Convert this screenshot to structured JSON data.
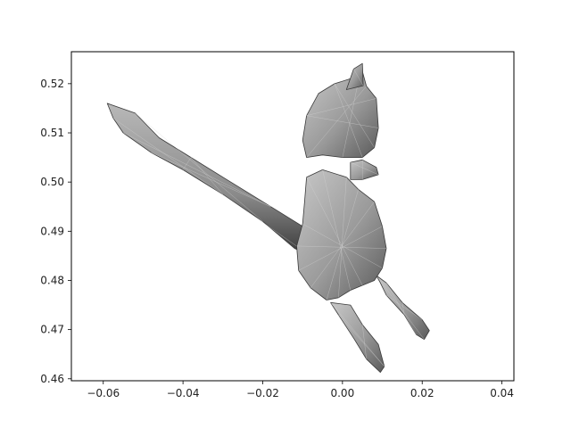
{
  "chart_data": {
    "type": "scatter",
    "title": "",
    "xlabel": "",
    "ylabel": "",
    "xlim": [
      -0.068,
      0.043
    ],
    "ylim": [
      0.4596,
      0.5265
    ],
    "x_ticks": [
      -0.06,
      -0.04,
      -0.02,
      0.0,
      0.02,
      0.04
    ],
    "x_tick_labels": [
      "−0.06",
      "−0.04",
      "−0.02",
      "0.00",
      "0.02",
      "0.04"
    ],
    "y_ticks": [
      0.46,
      0.47,
      0.48,
      0.49,
      0.5,
      0.51,
      0.52
    ],
    "y_tick_labels": [
      "0.46",
      "0.47",
      "0.48",
      "0.49",
      "0.50",
      "0.51",
      "0.52"
    ],
    "grid": false,
    "legend": "none",
    "render": "gray-shaded 3D mesh of an animal figure (cat-like) with long tail",
    "mesh_color": "#9a9a9a",
    "colors": {
      "axes": "#000000",
      "background": "#ffffff",
      "mesh_light": "#c8c8c8",
      "mesh_dark": "#3a3a3a"
    },
    "series": [
      {
        "name": "",
        "parts": {
          "head": [
            [
              -0.01,
              0.5085
            ],
            [
              -0.009,
              0.5135
            ],
            [
              -0.006,
              0.518
            ],
            [
              -0.002,
              0.52
            ],
            [
              0.002,
              0.521
            ],
            [
              0.004,
              0.5205
            ],
            [
              0.005,
              0.5225
            ],
            [
              0.006,
              0.5195
            ],
            [
              0.0085,
              0.517
            ],
            [
              0.009,
              0.511
            ],
            [
              0.008,
              0.507
            ],
            [
              0.005,
              0.505
            ],
            [
              0.0,
              0.505
            ],
            [
              -0.005,
              0.5055
            ],
            [
              -0.009,
              0.505
            ]
          ],
          "ear": [
            [
              0.001,
              0.5188
            ],
            [
              0.0028,
              0.523
            ],
            [
              0.005,
              0.5241
            ],
            [
              0.0052,
              0.5196
            ]
          ],
          "snout": [
            [
              0.002,
              0.504
            ],
            [
              0.005,
              0.5045
            ],
            [
              0.0085,
              0.503
            ],
            [
              0.009,
              0.5015
            ],
            [
              0.005,
              0.5005
            ],
            [
              0.002,
              0.5005
            ]
          ],
          "body": [
            [
              -0.009,
              0.501
            ],
            [
              -0.005,
              0.5025
            ],
            [
              0.001,
              0.501
            ],
            [
              0.004,
              0.4985
            ],
            [
              0.008,
              0.496
            ],
            [
              0.01,
              0.491
            ],
            [
              0.011,
              0.4865
            ],
            [
              0.01,
              0.4825
            ],
            [
              0.008,
              0.48
            ],
            [
              0.005,
              0.479
            ],
            [
              0.002,
              0.478
            ],
            [
              -0.001,
              0.4765
            ],
            [
              -0.004,
              0.476
            ],
            [
              -0.008,
              0.4785
            ],
            [
              -0.011,
              0.482
            ],
            [
              -0.0115,
              0.487
            ],
            [
              -0.01,
              0.4915
            ],
            [
              -0.0095,
              0.496
            ]
          ],
          "front_leg": [
            [
              -0.003,
              0.4755
            ],
            [
              -0.001,
              0.473
            ],
            [
              0.003,
              0.468
            ],
            [
              0.006,
              0.464
            ],
            [
              0.0095,
              0.4613
            ],
            [
              0.0105,
              0.4625
            ],
            [
              0.009,
              0.467
            ],
            [
              0.005,
              0.471
            ],
            [
              0.002,
              0.475
            ]
          ],
          "hind_leg": [
            [
              0.0085,
              0.481
            ],
            [
              0.011,
              0.4795
            ],
            [
              0.015,
              0.4755
            ],
            [
              0.02,
              0.472
            ],
            [
              0.0218,
              0.4698
            ],
            [
              0.0205,
              0.468
            ],
            [
              0.0185,
              0.469
            ],
            [
              0.0155,
              0.473
            ],
            [
              0.011,
              0.477
            ],
            [
              0.0095,
              0.4795
            ]
          ],
          "tail": [
            [
              -0.009,
              0.4905
            ],
            [
              -0.018,
              0.495
            ],
            [
              -0.028,
              0.5
            ],
            [
              -0.038,
              0.505
            ],
            [
              -0.046,
              0.509
            ],
            [
              -0.052,
              0.514
            ],
            [
              -0.059,
              0.516
            ],
            [
              -0.0575,
              0.513
            ],
            [
              -0.055,
              0.51
            ],
            [
              -0.048,
              0.506
            ],
            [
              -0.04,
              0.5025
            ],
            [
              -0.03,
              0.4975
            ],
            [
              -0.02,
              0.492
            ],
            [
              -0.012,
              0.4865
            ],
            [
              -0.008,
              0.485
            ]
          ]
        }
      }
    ]
  }
}
